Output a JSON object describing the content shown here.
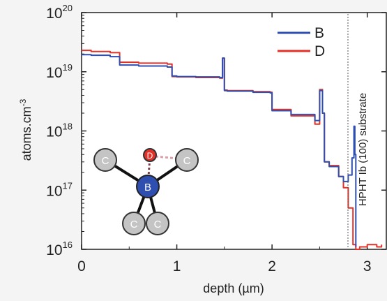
{
  "chart_data": {
    "type": "line",
    "xlabel": "depth (µm)",
    "ylabel": "atoms.cm",
    "ylabel_exponent": "-3",
    "xlim": [
      0,
      3.2
    ],
    "ylim": [
      1e+16,
      1e+20
    ],
    "yscale": "log",
    "xticks": [
      0,
      1,
      2,
      3
    ],
    "yticks": [
      {
        "base": "10",
        "exp": "16",
        "value": 1e+16
      },
      {
        "base": "10",
        "exp": "17",
        "value": 1e+17
      },
      {
        "base": "10",
        "exp": "18",
        "value": 1e+18
      },
      {
        "base": "10",
        "exp": "19",
        "value": 1e+19
      },
      {
        "base": "10",
        "exp": "20",
        "value": 1e+20
      }
    ],
    "legend_position": "top-right",
    "annotation": "HPHT Ib (100) substrate",
    "substrate_boundary_x": 2.86,
    "series": [
      {
        "name": "B",
        "color": "#2f4fb0",
        "x": [
          0,
          0.1,
          0.3,
          0.38,
          0.4,
          0.6,
          0.9,
          0.95,
          1.0,
          1.2,
          1.45,
          1.48,
          1.5,
          1.53,
          1.8,
          1.98,
          2.0,
          2.2,
          2.45,
          2.5,
          2.53,
          2.55,
          2.6,
          2.7,
          2.75,
          2.8,
          2.84,
          2.86,
          2.87,
          2.88
        ],
        "y": [
          1.95e+19,
          1.9e+19,
          1.8e+19,
          1.8e+19,
          1.3e+19,
          1.25e+19,
          1.2e+19,
          8.5e+18,
          8.3e+18,
          8.2e+18,
          8e+18,
          1.7e+19,
          4.8e+18,
          4.7e+18,
          4.5e+18,
          4.4e+18,
          2.2e+18,
          1.9e+18,
          1.5e+18,
          4.8e+18,
          2e+18,
          3e+17,
          2.5e+17,
          1.7e+17,
          1.4e+17,
          1.8e+17,
          3.5e+17,
          1.2e+18,
          4e+17,
          1.1e+16
        ]
      },
      {
        "name": "D",
        "color": "#e23128",
        "x": [
          0,
          0.1,
          0.3,
          0.38,
          0.4,
          0.6,
          0.9,
          0.95,
          1.0,
          1.2,
          1.45,
          1.48,
          1.5,
          1.53,
          1.8,
          1.98,
          2.0,
          2.2,
          2.45,
          2.5,
          2.53,
          2.55,
          2.6,
          2.7,
          2.75,
          2.8,
          2.85,
          2.88,
          2.92,
          3.0,
          3.1,
          3.15
        ],
        "y": [
          2.3e+19,
          2.2e+19,
          2.1e+19,
          2.1e+19,
          1.45e+19,
          1.4e+19,
          1.35e+19,
          8.3e+18,
          8.2e+18,
          8e+18,
          7.8e+18,
          1.7e+19,
          4.9e+18,
          4.8e+18,
          4.6e+18,
          4.5e+18,
          2.3e+18,
          1.8e+18,
          1.3e+18,
          5e+18,
          2e+18,
          3e+17,
          2.6e+17,
          1.7e+17,
          1.1e+17,
          5e+16,
          1.2e+16,
          1e+16,
          1.1e+16,
          1.2e+16,
          1.1e+16,
          1.2e+16
        ]
      }
    ]
  },
  "molecule": {
    "center_label": "B",
    "neighbor_label": "C",
    "dopant_label": "D"
  }
}
